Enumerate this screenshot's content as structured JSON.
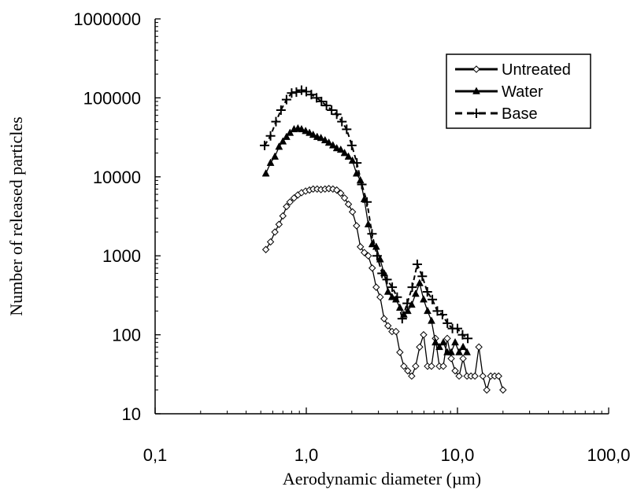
{
  "chart_data": {
    "type": "line",
    "xlabel": "Aerodynamic diameter (µm)",
    "ylabel": "Number of released particles",
    "x_scale": "log",
    "y_scale": "log",
    "xlim": [
      0.1,
      100
    ],
    "ylim": [
      10,
      1000000
    ],
    "x_ticks": [
      0.1,
      1,
      10,
      100
    ],
    "x_tick_labels": [
      "0,1",
      "1,0",
      "10,0",
      "100,0"
    ],
    "y_ticks": [
      10,
      100,
      1000,
      10000,
      100000,
      1000000
    ],
    "y_tick_labels": [
      "10",
      "100",
      "1000",
      "10000",
      "100000",
      "1000000"
    ],
    "grid": false,
    "legend_position": "top-right",
    "series": [
      {
        "name": "Untreated",
        "color": "#000000",
        "marker": "diamond-open",
        "line": "solid",
        "points": [
          [
            0.54,
            1200
          ],
          [
            0.58,
            1500
          ],
          [
            0.62,
            2000
          ],
          [
            0.66,
            2500
          ],
          [
            0.7,
            3200
          ],
          [
            0.74,
            4200
          ],
          [
            0.78,
            4800
          ],
          [
            0.83,
            5400
          ],
          [
            0.88,
            5900
          ],
          [
            0.93,
            6300
          ],
          [
            0.99,
            6600
          ],
          [
            1.05,
            6800
          ],
          [
            1.11,
            7000
          ],
          [
            1.18,
            7000
          ],
          [
            1.25,
            6900
          ],
          [
            1.33,
            7000
          ],
          [
            1.41,
            7100
          ],
          [
            1.5,
            7000
          ],
          [
            1.59,
            6800
          ],
          [
            1.69,
            6200
          ],
          [
            1.79,
            5400
          ],
          [
            1.9,
            4500
          ],
          [
            2.02,
            3600
          ],
          [
            2.15,
            2400
          ],
          [
            2.28,
            1300
          ],
          [
            2.42,
            1100
          ],
          [
            2.57,
            1000
          ],
          [
            2.73,
            700
          ],
          [
            2.9,
            400
          ],
          [
            3.08,
            300
          ],
          [
            3.27,
            160
          ],
          [
            3.47,
            130
          ],
          [
            3.69,
            110
          ],
          [
            3.92,
            110
          ],
          [
            4.16,
            60
          ],
          [
            4.42,
            40
          ],
          [
            4.69,
            35
          ],
          [
            4.98,
            30
          ],
          [
            5.29,
            40
          ],
          [
            5.62,
            70
          ],
          [
            5.97,
            100
          ],
          [
            6.34,
            40
          ],
          [
            6.73,
            40
          ],
          [
            7.15,
            90
          ],
          [
            7.59,
            40
          ],
          [
            8.06,
            40
          ],
          [
            8.56,
            90
          ],
          [
            9.09,
            50
          ],
          [
            9.65,
            35
          ],
          [
            10.25,
            30
          ],
          [
            10.89,
            50
          ],
          [
            11.56,
            30
          ],
          [
            12.28,
            30
          ],
          [
            13.04,
            30
          ],
          [
            13.85,
            70
          ],
          [
            14.71,
            30
          ],
          [
            15.62,
            20
          ],
          [
            16.59,
            30
          ],
          [
            17.62,
            30
          ],
          [
            18.71,
            30
          ],
          [
            20.0,
            20
          ]
        ]
      },
      {
        "name": "Water",
        "color": "#000000",
        "marker": "triangle-filled",
        "line": "solid",
        "points": [
          [
            0.54,
            11000
          ],
          [
            0.58,
            15000
          ],
          [
            0.62,
            18000
          ],
          [
            0.66,
            24000
          ],
          [
            0.7,
            28000
          ],
          [
            0.74,
            32000
          ],
          [
            0.78,
            36000
          ],
          [
            0.83,
            40000
          ],
          [
            0.88,
            41000
          ],
          [
            0.93,
            40000
          ],
          [
            0.99,
            38000
          ],
          [
            1.05,
            36000
          ],
          [
            1.11,
            34000
          ],
          [
            1.18,
            32000
          ],
          [
            1.25,
            31000
          ],
          [
            1.33,
            29000
          ],
          [
            1.41,
            27000
          ],
          [
            1.5,
            25000
          ],
          [
            1.59,
            23000
          ],
          [
            1.69,
            22000
          ],
          [
            1.79,
            20000
          ],
          [
            1.9,
            18000
          ],
          [
            2.02,
            16000
          ],
          [
            2.15,
            11000
          ],
          [
            2.28,
            9000
          ],
          [
            2.42,
            5200
          ],
          [
            2.57,
            2500
          ],
          [
            2.73,
            1400
          ],
          [
            2.9,
            1300
          ],
          [
            3.08,
            900
          ],
          [
            3.27,
            600
          ],
          [
            3.47,
            350
          ],
          [
            3.69,
            300
          ],
          [
            3.92,
            280
          ],
          [
            4.16,
            220
          ],
          [
            4.42,
            180
          ],
          [
            4.69,
            200
          ],
          [
            4.98,
            240
          ],
          [
            5.29,
            330
          ],
          [
            5.62,
            450
          ],
          [
            5.97,
            280
          ],
          [
            6.34,
            200
          ],
          [
            6.73,
            150
          ],
          [
            7.15,
            80
          ],
          [
            7.59,
            70
          ],
          [
            8.06,
            80
          ],
          [
            8.56,
            60
          ],
          [
            9.09,
            60
          ],
          [
            9.65,
            80
          ],
          [
            10.25,
            60
          ],
          [
            10.89,
            70
          ],
          [
            11.56,
            60
          ]
        ]
      },
      {
        "name": "Base",
        "color": "#000000",
        "marker": "plus",
        "line": "dashed",
        "points": [
          [
            0.53,
            25000
          ],
          [
            0.58,
            33000
          ],
          [
            0.63,
            50000
          ],
          [
            0.68,
            70000
          ],
          [
            0.74,
            95000
          ],
          [
            0.8,
            115000
          ],
          [
            0.86,
            118000
          ],
          [
            0.93,
            125000
          ],
          [
            1.0,
            120000
          ],
          [
            1.08,
            110000
          ],
          [
            1.17,
            100000
          ],
          [
            1.26,
            90000
          ],
          [
            1.36,
            80000
          ],
          [
            1.47,
            70000
          ],
          [
            1.59,
            62000
          ],
          [
            1.72,
            50000
          ],
          [
            1.85,
            40000
          ],
          [
            2.0,
            25000
          ],
          [
            2.16,
            15000
          ],
          [
            2.33,
            8000
          ],
          [
            2.52,
            4800
          ],
          [
            2.72,
            1900
          ],
          [
            2.94,
            1000
          ],
          [
            3.17,
            600
          ],
          [
            3.42,
            500
          ],
          [
            3.7,
            400
          ],
          [
            3.99,
            300
          ],
          [
            4.31,
            160
          ],
          [
            4.65,
            250
          ],
          [
            5.02,
            400
          ],
          [
            5.42,
            780
          ],
          [
            5.85,
            550
          ],
          [
            6.32,
            350
          ],
          [
            6.82,
            280
          ],
          [
            7.36,
            200
          ],
          [
            7.95,
            180
          ],
          [
            8.58,
            140
          ],
          [
            9.26,
            120
          ],
          [
            10.0,
            120
          ],
          [
            10.8,
            100
          ],
          [
            11.7,
            90
          ]
        ]
      }
    ]
  }
}
